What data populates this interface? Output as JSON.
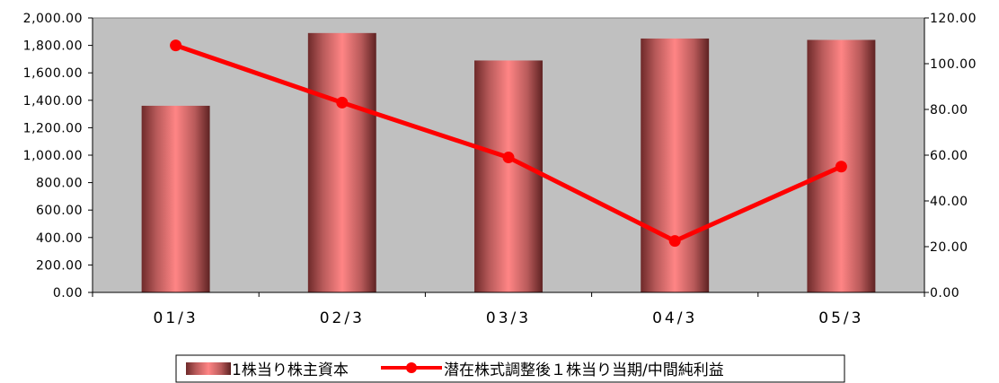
{
  "chart_data": {
    "type": "bar",
    "title": "",
    "xlabel": "",
    "ylabel": "",
    "categories": [
      "01/3",
      "02/3",
      "03/3",
      "04/3",
      "05/3"
    ],
    "ylim": [
      0,
      2000
    ],
    "ylim_right": [
      0,
      120
    ],
    "yticks": [
      "0.00",
      "200.00",
      "400.00",
      "600.00",
      "800.00",
      "1,000.00",
      "1,200.00",
      "1,400.00",
      "1,600.00",
      "1,800.00",
      "2,000.00"
    ],
    "yticks_right": [
      "0.00",
      "20.00",
      "40.00",
      "60.00",
      "80.00",
      "100.00",
      "120.00"
    ],
    "grid": false,
    "legend_position": "bottom",
    "plot_background": "#c0c0c0",
    "series": [
      {
        "name": "1株当り株主資本",
        "type": "bar",
        "axis": "left",
        "color": "#ff8080",
        "values": [
          1360,
          1890,
          1690,
          1850,
          1840
        ]
      },
      {
        "name": "潜在株式調整後１株当り当期/中間純利益",
        "type": "line",
        "axis": "right",
        "color": "#ff0000",
        "values": [
          108,
          83,
          59,
          22.5,
          55
        ]
      }
    ]
  }
}
